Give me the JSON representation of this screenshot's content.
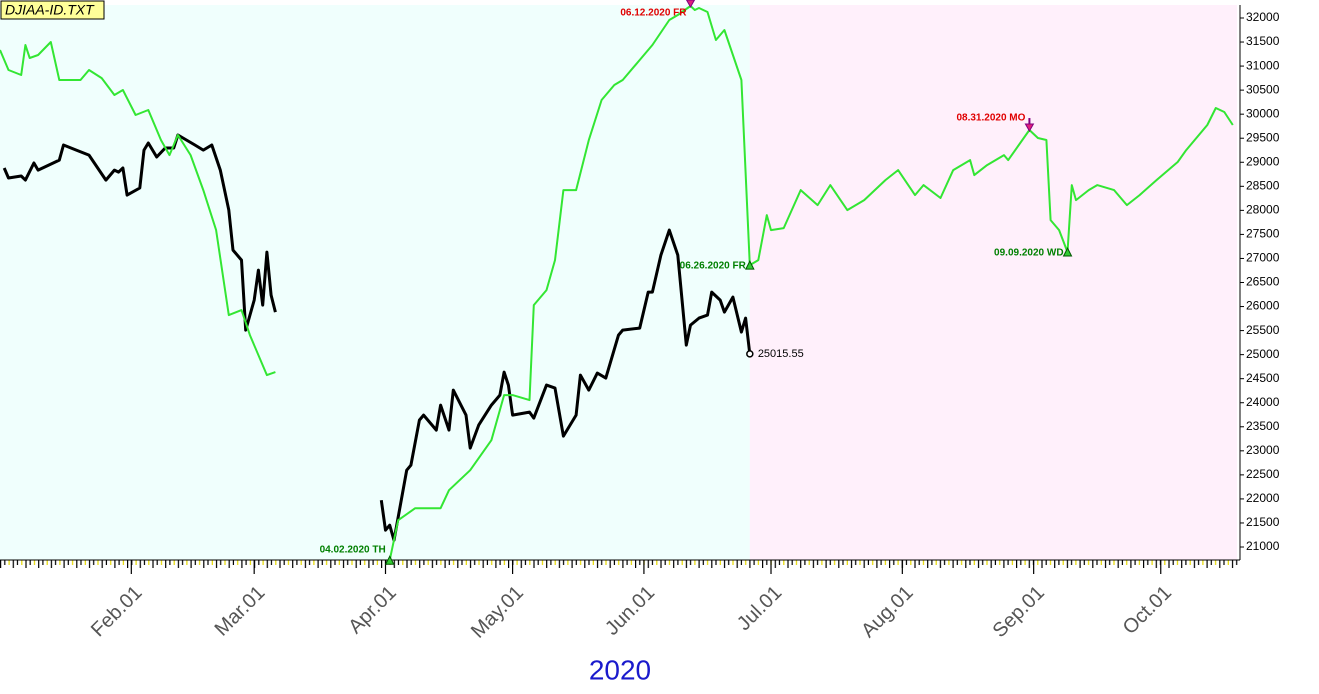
{
  "chart_data": {
    "type": "line",
    "source_label": "DJIAA-ID.TXT",
    "year_label": "2020",
    "xlim": [
      "2020-01-01",
      "2020-10-19"
    ],
    "xticks": [
      {
        "value": "2020-02-01",
        "label": "Feb.01"
      },
      {
        "value": "2020-03-01",
        "label": "Mar.01"
      },
      {
        "value": "2020-04-01",
        "label": "Apr.01"
      },
      {
        "value": "2020-05-01",
        "label": "May.01"
      },
      {
        "value": "2020-06-01",
        "label": "Jun.01"
      },
      {
        "value": "2020-07-01",
        "label": "Jul.01"
      },
      {
        "value": "2020-08-01",
        "label": "Aug.01"
      },
      {
        "value": "2020-09-01",
        "label": "Sep.01"
      },
      {
        "value": "2020-10-01",
        "label": "Oct.01"
      }
    ],
    "ylim": [
      20730,
      32270
    ],
    "yticks": [
      21000,
      21500,
      22000,
      22500,
      23000,
      23500,
      24000,
      24500,
      25000,
      25500,
      26000,
      26500,
      27000,
      27500,
      28000,
      28500,
      29000,
      29500,
      30000,
      30500,
      31000,
      31500,
      32000
    ],
    "shaded": [
      {
        "from": "2020-01-01",
        "to": "2020-06-26",
        "color": "#f0fffd"
      },
      {
        "from": "2020-06-26",
        "to": "2020-10-19",
        "color": "#fff0fb"
      }
    ],
    "series": [
      {
        "color": "#000000",
        "width": 3,
        "end_label": true,
        "x": [
          "2020-01-02",
          "2020-01-03",
          "2020-01-06",
          "2020-01-07",
          "2020-01-09",
          "2020-01-10",
          "2020-01-15",
          "2020-01-16",
          "2020-01-19",
          "2020-01-22",
          "2020-01-26",
          "2020-01-28",
          "2020-01-29",
          "2020-01-30",
          "2020-01-31",
          "2020-02-03",
          "2020-02-04",
          "2020-02-05",
          "2020-02-07",
          "2020-02-09",
          "2020-02-11",
          "2020-02-12",
          "2020-02-16",
          "2020-02-18",
          "2020-02-20",
          "2020-02-22",
          "2020-02-24",
          "2020-02-25",
          "2020-02-27",
          "2020-02-28",
          "2020-03-01",
          "2020-03-02",
          "2020-03-03",
          "2020-03-04",
          "2020-03-05",
          "2020-03-06",
          "2020-03-20",
          "2020-03-31",
          "2020-04-01",
          "2020-04-02",
          "2020-04-03",
          "2020-04-06",
          "2020-04-07",
          "2020-04-09",
          "2020-04-10",
          "2020-04-13",
          "2020-04-14",
          "2020-04-16",
          "2020-04-17",
          "2020-04-20",
          "2020-04-21",
          "2020-04-23",
          "2020-04-26",
          "2020-04-28",
          "2020-04-29",
          "2020-04-30",
          "2020-05-01",
          "2020-05-05",
          "2020-05-06",
          "2020-05-09",
          "2020-05-11",
          "2020-05-13",
          "2020-05-16",
          "2020-05-17",
          "2020-05-19",
          "2020-05-21",
          "2020-05-23",
          "2020-05-26",
          "2020-05-27",
          "2020-05-31",
          "2020-06-02",
          "2020-06-03",
          "2020-06-05",
          "2020-06-07",
          "2020-06-09",
          "2020-06-11",
          "2020-06-12",
          "2020-06-14",
          "2020-06-16",
          "2020-06-17",
          "2020-06-19",
          "2020-06-20",
          "2020-06-22",
          "2020-06-24",
          "2020-06-25",
          "2020-06-26"
        ],
        "values": [
          28880,
          28672,
          28714,
          28630,
          28984,
          28838,
          29046,
          29358,
          29254,
          29150,
          28630,
          28838,
          28796,
          28880,
          28318,
          28464,
          29254,
          29400,
          29110,
          29296,
          29296,
          29566,
          29358,
          29254,
          29358,
          28838,
          28006,
          27174,
          26966,
          25510,
          26134,
          26758,
          26030,
          27133,
          26238,
          25885,
          null,
          21974,
          21350,
          21454,
          21142,
          22598,
          22702,
          23638,
          23742,
          23430,
          23950,
          23430,
          24262,
          23742,
          23056,
          23534,
          23950,
          24158,
          24637,
          24366,
          23742,
          23805,
          23680,
          24366,
          24304,
          23306,
          23742,
          24574,
          24262,
          24616,
          24512,
          25406,
          25510,
          25552,
          26301,
          26301,
          27070,
          27590,
          27070,
          25198,
          25614,
          25760,
          25822,
          26301,
          26134,
          25885,
          26197,
          25469,
          25760,
          25015.55
        ]
      },
      {
        "color": "#33e633",
        "width": 2,
        "x": [
          "2020-01-01",
          "2020-01-03",
          "2020-01-06",
          "2020-01-07",
          "2020-01-08",
          "2020-01-10",
          "2020-01-13",
          "2020-01-15",
          "2020-01-20",
          "2020-01-22",
          "2020-01-25",
          "2020-01-28",
          "2020-01-30",
          "2020-02-02",
          "2020-02-05",
          "2020-02-08",
          "2020-02-10",
          "2020-02-12",
          "2020-02-15",
          "2020-02-18",
          "2020-02-21",
          "2020-02-24",
          "2020-02-27",
          "2020-02-29",
          "2020-03-04",
          "2020-03-06",
          "2020-03-20",
          "2020-04-02",
          "2020-04-04",
          "2020-04-08",
          "2020-04-14",
          "2020-04-16",
          "2020-04-21",
          "2020-04-26",
          "2020-04-29",
          "2020-05-01",
          "2020-05-05",
          "2020-05-06",
          "2020-05-09",
          "2020-05-11",
          "2020-05-13",
          "2020-05-16",
          "2020-05-19",
          "2020-05-22",
          "2020-05-25",
          "2020-05-27",
          "2020-05-31",
          "2020-06-03",
          "2020-06-07",
          "2020-06-09",
          "2020-06-12",
          "2020-06-13",
          "2020-06-14",
          "2020-06-16",
          "2020-06-18",
          "2020-06-20",
          "2020-06-24",
          "2020-06-26",
          "2020-06-28",
          "2020-06-30",
          "2020-07-01",
          "2020-07-04",
          "2020-07-08",
          "2020-07-12",
          "2020-07-15",
          "2020-07-19",
          "2020-07-23",
          "2020-07-28",
          "2020-07-31",
          "2020-08-04",
          "2020-08-06",
          "2020-08-10",
          "2020-08-13",
          "2020-08-17",
          "2020-08-18",
          "2020-08-21",
          "2020-08-25",
          "2020-08-26",
          "2020-08-31",
          "2020-09-02",
          "2020-09-04",
          "2020-09-05",
          "2020-09-07",
          "2020-09-09",
          "2020-09-10",
          "2020-09-11",
          "2020-09-14",
          "2020-09-16",
          "2020-09-20",
          "2020-09-23",
          "2020-09-26",
          "2020-09-30",
          "2020-10-05",
          "2020-10-07",
          "2020-10-09",
          "2020-10-12",
          "2020-10-14",
          "2020-10-16",
          "2020-10-18"
        ],
        "values": [
          31334,
          30918,
          30814,
          31438,
          31168,
          31230,
          31500,
          30710,
          30710,
          30918,
          30750,
          30398,
          30502,
          29982,
          30086,
          29460,
          29150,
          29566,
          29150,
          28422,
          27590,
          25822,
          25926,
          25406,
          24574,
          24637,
          null,
          20726,
          21558,
          21808,
          21808,
          22182,
          22598,
          23222,
          24158,
          24158,
          24054,
          26030,
          26342,
          26966,
          28422,
          28422,
          29460,
          30294,
          30606,
          30710,
          31126,
          31438,
          31958,
          32062,
          32250,
          32166,
          32208,
          32125,
          31542,
          31750,
          30710,
          26862,
          26966,
          27902,
          27590,
          27632,
          28422,
          28110,
          28526,
          28006,
          28214,
          28630,
          28838,
          28318,
          28526,
          28256,
          28838,
          29046,
          28734,
          28942,
          29150,
          29046,
          29670,
          29504,
          29462,
          27798,
          27590,
          27133,
          28526,
          28214,
          28422,
          28526,
          28422,
          28110,
          28318,
          28630,
          29005,
          29254,
          29460,
          29774,
          30128,
          30045,
          29774
        ]
      }
    ],
    "annotations": [
      {
        "label": "06.12.2020 FR",
        "x": "2020-06-12",
        "kind": "high"
      },
      {
        "label": "06.26.2020 FR",
        "x": "2020-06-26",
        "kind": "low"
      },
      {
        "label": "04.02.2020 TH",
        "x": "2020-04-02",
        "kind": "low"
      },
      {
        "label": "08.31.2020 MO",
        "x": "2020-08-31",
        "kind": "high"
      },
      {
        "label": "09.09.2020 WD",
        "x": "2020-09-09",
        "kind": "low"
      }
    ]
  }
}
